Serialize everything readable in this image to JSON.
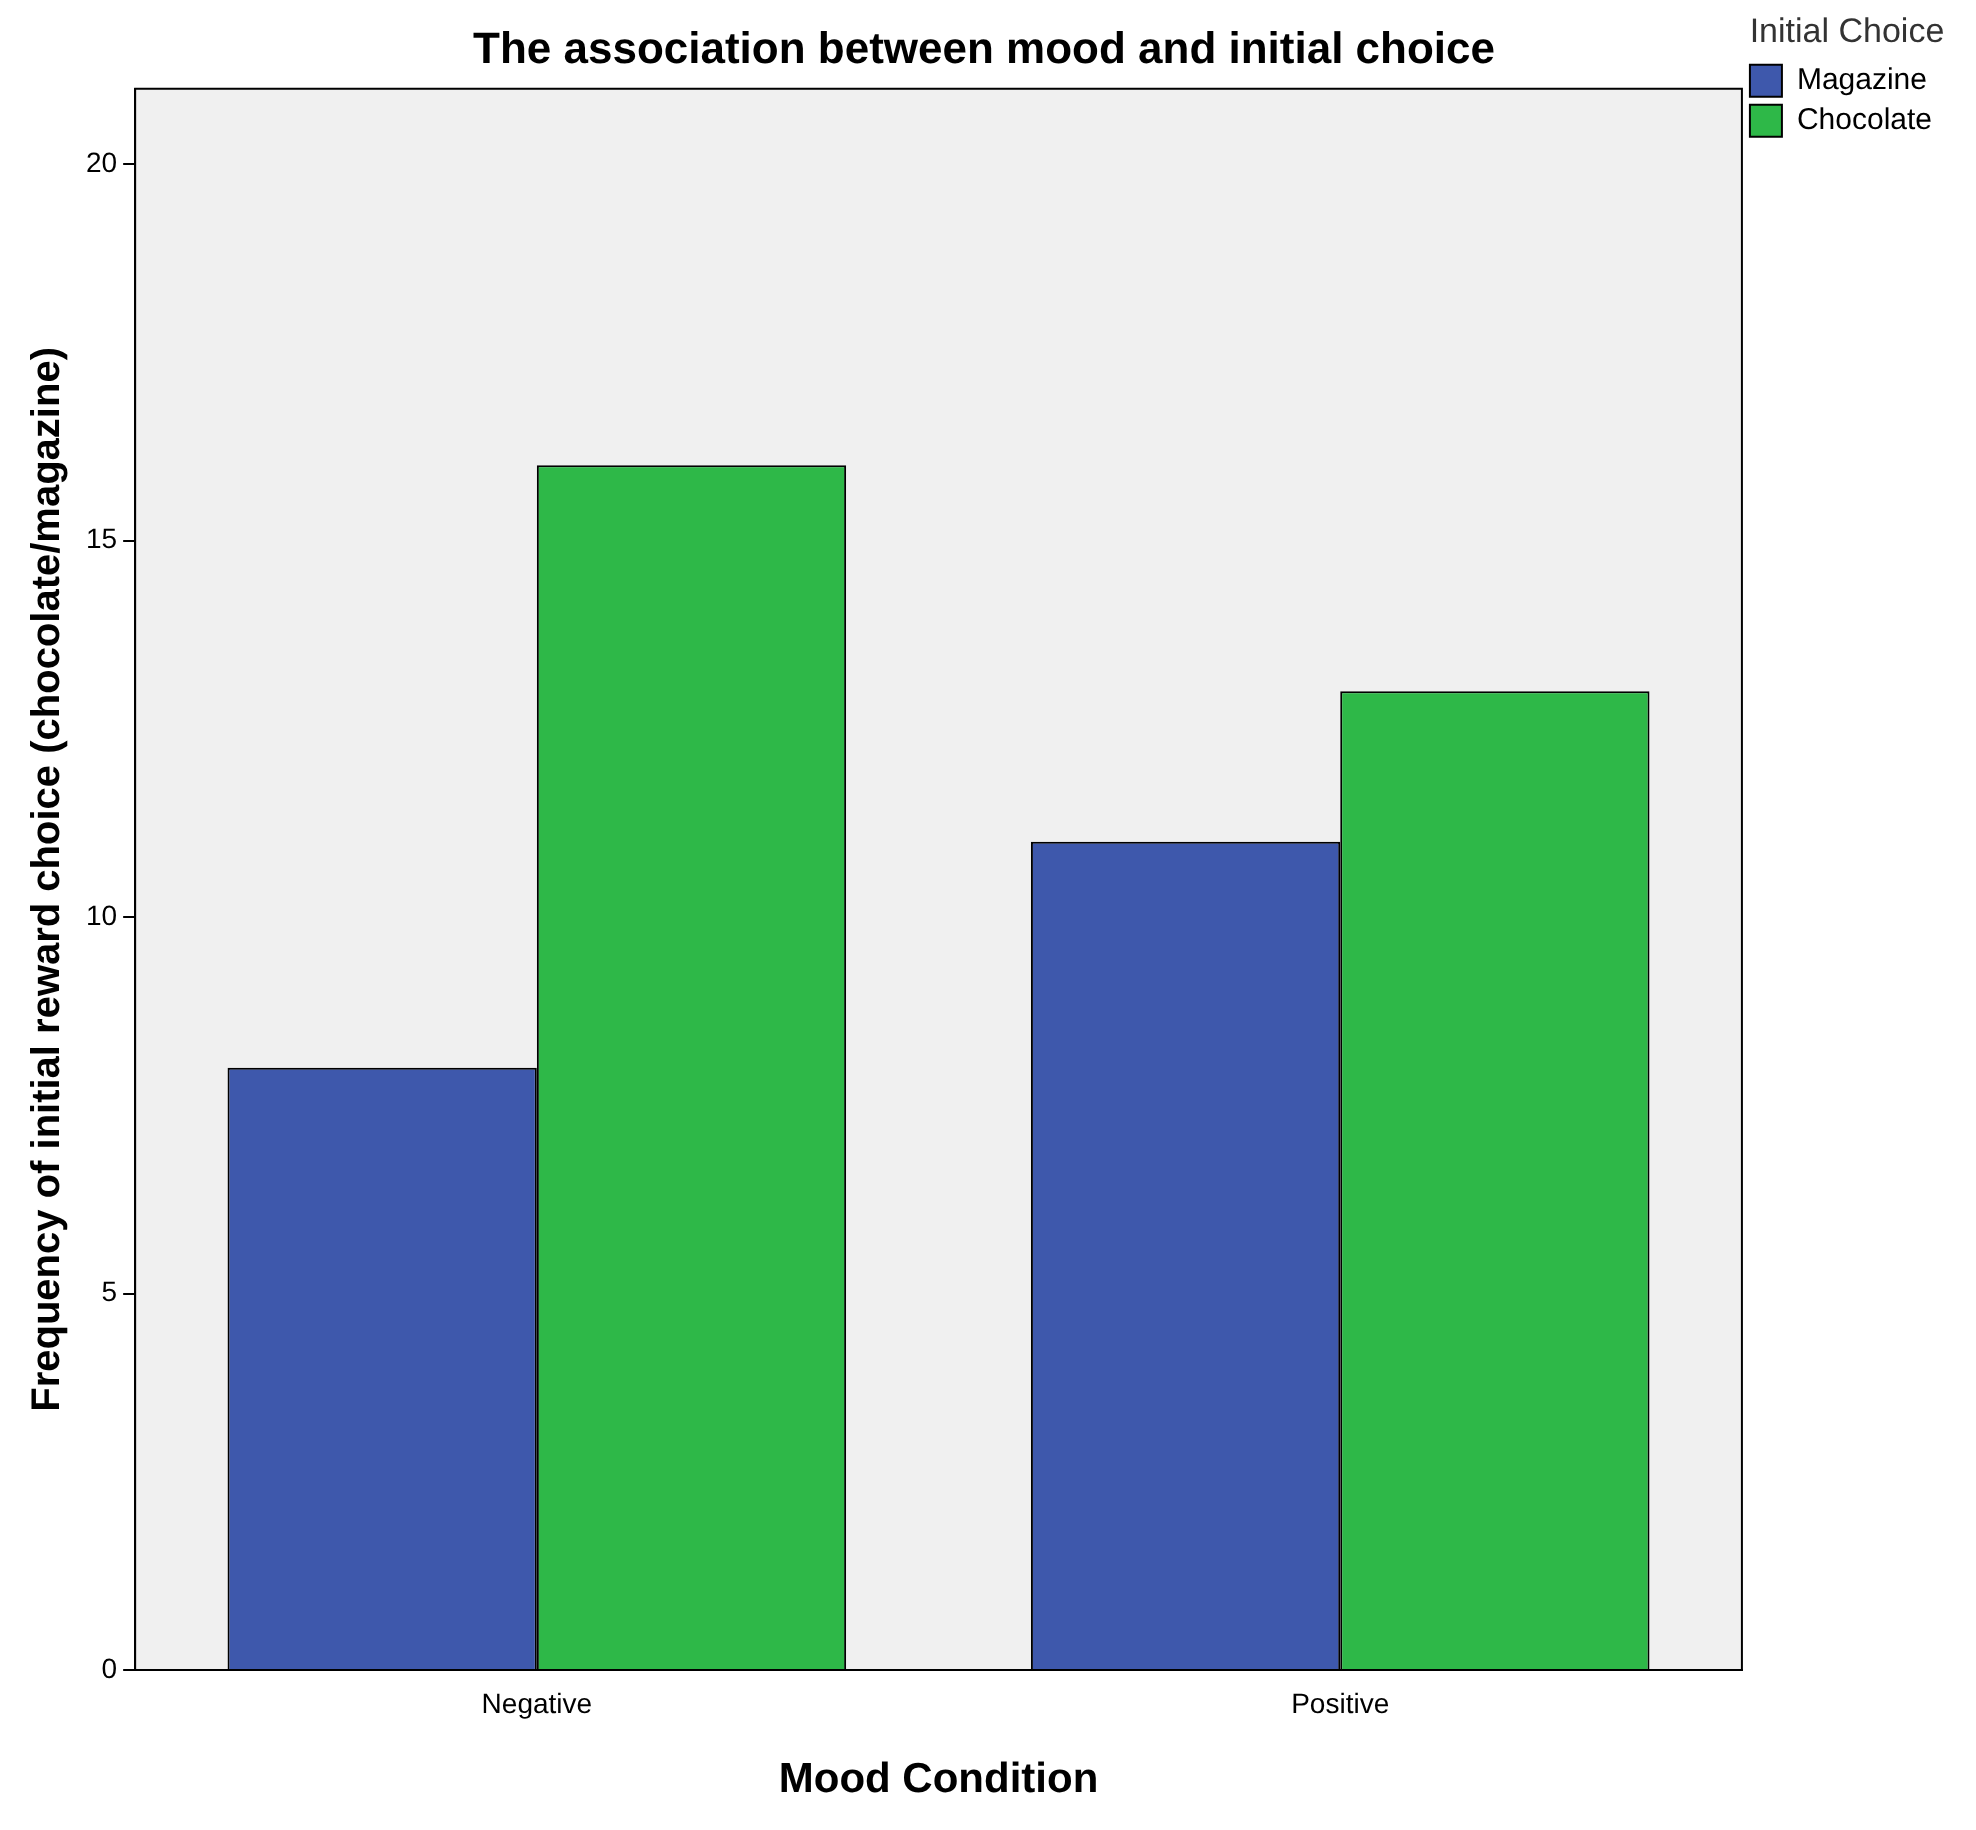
{
  "chart_data": {
    "type": "bar",
    "title": "The association between mood and initial choice",
    "xlabel": "Mood Condition",
    "ylabel": "Frequency of initial reward choice (chocolate/magazine)",
    "legend_title": "Initial Choice",
    "categories": [
      "Negative",
      "Positive"
    ],
    "series": [
      {
        "name": "Magazine",
        "color": "#3e58ac",
        "values": [
          8,
          11
        ]
      },
      {
        "name": "Chocolate",
        "color": "#2eb848",
        "values": [
          16,
          13
        ]
      }
    ],
    "ylim": [
      0,
      21
    ],
    "yticks": [
      0,
      5,
      10,
      15,
      20
    ],
    "grid": false,
    "legend": "top right"
  }
}
